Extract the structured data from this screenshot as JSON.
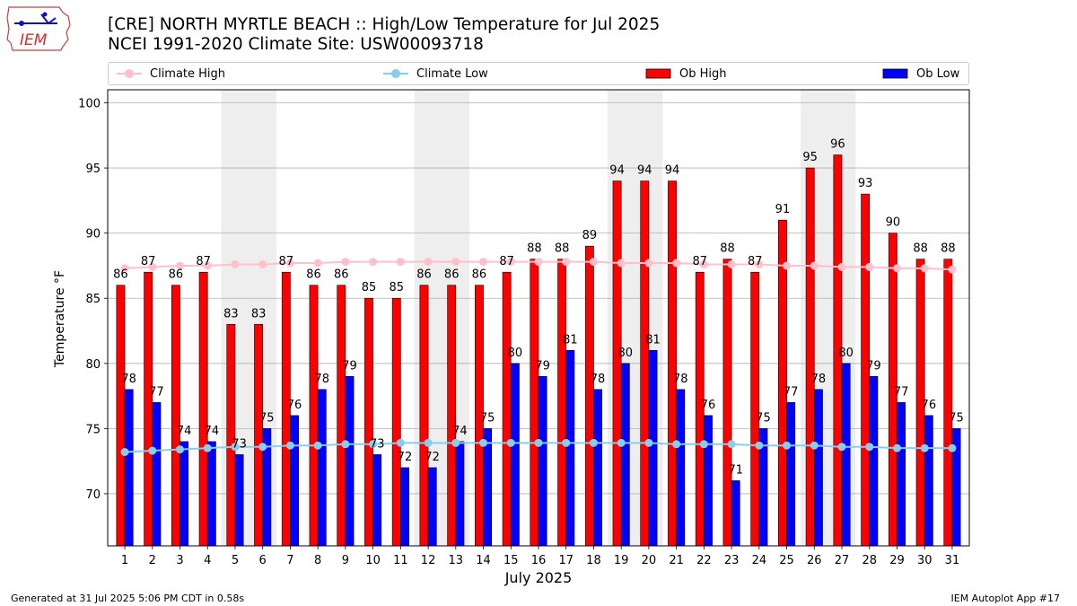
{
  "header": {
    "title_line1": "[CRE] NORTH MYRTLE BEACH :: High/Low Temperature for Jul 2025",
    "title_line2": "NCEI 1991-2020 Climate Site: USW00093718",
    "logo_text": "IEM"
  },
  "footer": {
    "generated": "Generated at 31 Jul 2025 5:06 PM CDT in 0.58s",
    "app": "IEM Autoplot App #17"
  },
  "legend": [
    {
      "label": "Climate High",
      "color": "#ffc0cb",
      "kind": "line"
    },
    {
      "label": "Climate Low",
      "color": "#87ceeb",
      "kind": "line"
    },
    {
      "label": "Ob High",
      "color": "#ff0000",
      "kind": "bar"
    },
    {
      "label": "Ob Low",
      "color": "#0000ff",
      "kind": "bar"
    }
  ],
  "chart_data": {
    "type": "bar",
    "xlabel": "July 2025",
    "ylabel": "Temperature °F",
    "ylim": [
      66,
      101
    ],
    "yticks": [
      70,
      75,
      80,
      85,
      90,
      95,
      100
    ],
    "grid": true,
    "legend_position": "top",
    "categories": [
      "1",
      "2",
      "3",
      "4",
      "5",
      "6",
      "7",
      "8",
      "9",
      "10",
      "11",
      "12",
      "13",
      "14",
      "15",
      "16",
      "17",
      "18",
      "19",
      "20",
      "21",
      "22",
      "23",
      "24",
      "25",
      "26",
      "27",
      "28",
      "29",
      "30",
      "31"
    ],
    "shaded_weekends": [
      [
        5,
        6
      ],
      [
        12,
        13
      ],
      [
        19,
        20
      ],
      [
        26,
        27
      ]
    ],
    "series": [
      {
        "name": "Ob High",
        "kind": "bar",
        "color": "#ff0000",
        "values": [
          86,
          87,
          86,
          87,
          83,
          83,
          87,
          86,
          86,
          85,
          85,
          86,
          86,
          86,
          87,
          88,
          88,
          89,
          94,
          94,
          94,
          87,
          88,
          87,
          91,
          95,
          96,
          93,
          90,
          88,
          88
        ]
      },
      {
        "name": "Ob Low",
        "kind": "bar",
        "color": "#0000ff",
        "values": [
          78,
          77,
          74,
          74,
          73,
          75,
          76,
          78,
          79,
          73,
          72,
          72,
          74,
          75,
          80,
          79,
          81,
          78,
          80,
          81,
          78,
          76,
          71,
          75,
          77,
          78,
          80,
          79,
          77,
          76,
          75
        ]
      },
      {
        "name": "Climate High",
        "kind": "line",
        "color": "#ffc0cb",
        "values": [
          87.3,
          87.4,
          87.5,
          87.5,
          87.6,
          87.6,
          87.7,
          87.7,
          87.8,
          87.8,
          87.8,
          87.8,
          87.8,
          87.8,
          87.8,
          87.8,
          87.8,
          87.8,
          87.7,
          87.7,
          87.7,
          87.6,
          87.6,
          87.6,
          87.5,
          87.5,
          87.4,
          87.4,
          87.3,
          87.3,
          87.2
        ]
      },
      {
        "name": "Climate Low",
        "kind": "line",
        "color": "#87ceeb",
        "values": [
          73.2,
          73.3,
          73.4,
          73.5,
          73.6,
          73.6,
          73.7,
          73.7,
          73.8,
          73.8,
          73.9,
          73.9,
          73.9,
          73.9,
          73.9,
          73.9,
          73.9,
          73.9,
          73.9,
          73.9,
          73.8,
          73.8,
          73.8,
          73.7,
          73.7,
          73.7,
          73.6,
          73.6,
          73.5,
          73.5,
          73.5
        ]
      }
    ]
  }
}
